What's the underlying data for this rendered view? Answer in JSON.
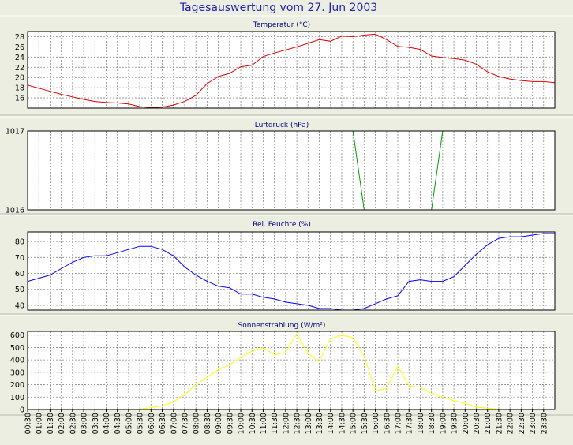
{
  "page": {
    "title": "Tagesauswertung vom 27. Jun 2003",
    "colors": {
      "background": "#eceee2",
      "plot_bg": "#ffffff",
      "grid": "#8a8a8a",
      "title": "#1f1fb0",
      "label": "#000080",
      "text": "#000000"
    }
  },
  "time_labels": [
    "00:30",
    "01:00",
    "01:30",
    "02:00",
    "02:30",
    "03:00",
    "03:30",
    "04:00",
    "04:30",
    "05:00",
    "05:30",
    "06:00",
    "06:30",
    "07:00",
    "07:30",
    "08:00",
    "08:30",
    "09:00",
    "09:30",
    "10:00",
    "10:30",
    "11:00",
    "11:30",
    "12:00",
    "12:30",
    "13:00",
    "13:30",
    "14:00",
    "14:30",
    "15:00",
    "15:30",
    "16:00",
    "16:30",
    "17:00",
    "17:30",
    "18:00",
    "18:30",
    "19:00",
    "19:30",
    "20:00",
    "20:30",
    "21:00",
    "21:30",
    "22:00",
    "22:30",
    "23:00",
    "23:30"
  ],
  "chart_data": [
    {
      "type": "line",
      "title": "Temperatur (°C)",
      "color": "#e00000",
      "ylim": [
        14,
        29
      ],
      "yticks": [
        16,
        18,
        20,
        22,
        24,
        26,
        28
      ],
      "grid": true,
      "series": [
        {
          "x": [
            0,
            0.5,
            1,
            1.5,
            2,
            2.5,
            3,
            3.5,
            4,
            4.5,
            5,
            5.5,
            6,
            6.5,
            7,
            7.5,
            8,
            8.5,
            9,
            9.5,
            10,
            10.5,
            11,
            11.5,
            12,
            12.5,
            13,
            13.5,
            14,
            14.5,
            15,
            15.5,
            16,
            16.5,
            17,
            17.5,
            18,
            18.5,
            19,
            19.5,
            20,
            20.5,
            21,
            21.5,
            22,
            22.5,
            23,
            23.5
          ],
          "values": [
            18.5,
            17.9,
            17.3,
            16.7,
            16.2,
            15.7,
            15.3,
            15.1,
            15.0,
            14.8,
            14.3,
            14.1,
            14.2,
            14.6,
            15.3,
            16.5,
            18.8,
            20.2,
            20.8,
            22.1,
            22.4,
            24.1,
            24.8,
            25.4,
            26.0,
            26.7,
            27.4,
            27.1,
            28.1,
            28.0,
            28.3,
            28.5,
            27.4,
            26.1,
            25.9,
            25.5,
            24.2,
            23.9,
            23.7,
            23.4,
            22.6,
            21.1,
            20.2,
            19.7,
            19.4,
            19.2,
            19.2,
            19.0
          ]
        }
      ]
    },
    {
      "type": "line",
      "title": "Luftdruck (hPa)",
      "color": "#00a000",
      "ylim": [
        1016,
        1017
      ],
      "yticks": [
        1016,
        1017
      ],
      "grid": true,
      "series": [
        {
          "x": [
            14.5,
            15.0,
            15.5,
            16.0,
            16.5,
            17.0,
            17.5,
            18.0,
            18.5
          ],
          "values": [
            1017,
            1016,
            1016,
            1016,
            1016,
            1016,
            1016,
            1016,
            1017
          ]
        }
      ]
    },
    {
      "type": "line",
      "title": "Rel. Feuchte (%)",
      "color": "#0000ff",
      "ylim": [
        37,
        86
      ],
      "yticks": [
        40,
        50,
        60,
        70,
        80
      ],
      "grid": true,
      "series": [
        {
          "x": [
            0,
            0.5,
            1,
            1.5,
            2,
            2.5,
            3,
            3.5,
            4,
            4.5,
            5,
            5.5,
            6,
            6.5,
            7,
            7.5,
            8,
            8.5,
            9,
            9.5,
            10,
            10.5,
            11,
            11.5,
            12,
            12.5,
            13,
            13.5,
            14,
            14.5,
            15,
            15.5,
            16,
            16.5,
            17,
            17.5,
            18,
            18.5,
            19,
            19.5,
            20,
            20.5,
            21,
            21.5,
            22,
            22.5,
            23,
            23.5
          ],
          "values": [
            55,
            57,
            59,
            63,
            67,
            70,
            71,
            71,
            73,
            75,
            77,
            77,
            75,
            71,
            64,
            59,
            55,
            52,
            51,
            47,
            47,
            45,
            44,
            42,
            41,
            40,
            38,
            38,
            37,
            37,
            38,
            41,
            44,
            46,
            55,
            56,
            55,
            55,
            58,
            65,
            72,
            78,
            82,
            83,
            83,
            84,
            85,
            85
          ]
        }
      ]
    },
    {
      "type": "line",
      "title": "Sonnenstrahlung (W/m²)",
      "color": "#ffff00",
      "ylim": [
        0,
        630
      ],
      "yticks": [
        0,
        100,
        200,
        300,
        400,
        500,
        600
      ],
      "grid": true,
      "series": [
        {
          "x": [
            0,
            0.5,
            1,
            1.5,
            2,
            2.5,
            3,
            3.5,
            4,
            4.5,
            5,
            5.5,
            6,
            6.5,
            7,
            7.5,
            8,
            8.5,
            9,
            9.5,
            10,
            10.5,
            11,
            11.5,
            12,
            12.5,
            13,
            13.5,
            14,
            14.5,
            15,
            15.5,
            16,
            16.5,
            17,
            17.5,
            18,
            18.5,
            19,
            19.5,
            20,
            20.5,
            21,
            21.5,
            22,
            22.5,
            23,
            23.5
          ],
          "values": [
            0,
            0,
            0,
            0,
            0,
            0,
            0,
            0,
            0,
            0,
            5,
            15,
            30,
            60,
            120,
            200,
            260,
            320,
            360,
            420,
            470,
            500,
            440,
            460,
            610,
            450,
            390,
            570,
            600,
            580,
            430,
            150,
            170,
            350,
            190,
            180,
            130,
            100,
            70,
            50,
            20,
            10,
            5,
            0,
            0,
            0,
            0,
            0
          ]
        }
      ]
    }
  ]
}
